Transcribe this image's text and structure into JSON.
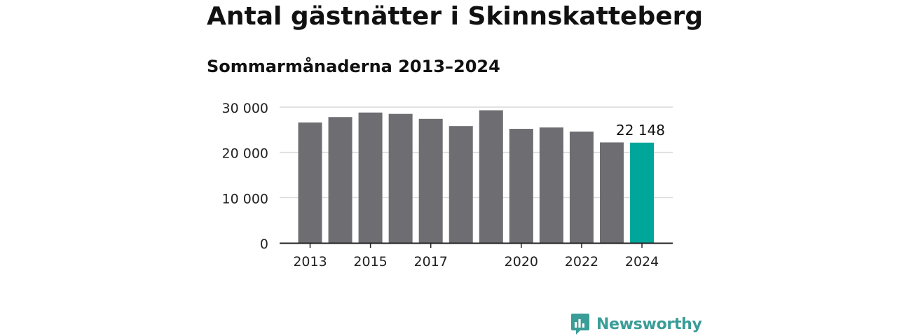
{
  "title": "Antal gästnätter i Skinnskatteberg",
  "subtitle": "Sommarmånaderna 2013–2024",
  "brand": {
    "name": "Newsworthy",
    "icon": "newsworthy-logo-icon",
    "color": "#3a9d97"
  },
  "chart_data": {
    "type": "bar",
    "title": "Antal gästnätter i Skinnskatteberg",
    "subtitle": "Sommarmånaderna 2013–2024",
    "xlabel": "",
    "ylabel": "",
    "categories": [
      "2013",
      "2014",
      "2015",
      "2016",
      "2017",
      "2018",
      "2019",
      "2020",
      "2021",
      "2022",
      "2023",
      "2024"
    ],
    "values": [
      26600,
      27800,
      28800,
      28500,
      27400,
      25800,
      29300,
      25200,
      25500,
      24600,
      22200,
      22148
    ],
    "ylim": [
      0,
      30000
    ],
    "y_ticks": [
      0,
      10000,
      20000,
      30000
    ],
    "y_tick_labels": [
      "0",
      "10 000",
      "20 000",
      "30 000"
    ],
    "x_tick_labels": [
      "2013",
      "2015",
      "2017",
      "2020",
      "2022",
      "2024"
    ],
    "grid": true,
    "highlight_index": 11,
    "annotation": {
      "index": 11,
      "text": "22 148"
    },
    "colors": {
      "bar": "#6e6d72",
      "highlight": "#00a699",
      "grid": "#d9d9d9",
      "axis": "#222222"
    }
  }
}
